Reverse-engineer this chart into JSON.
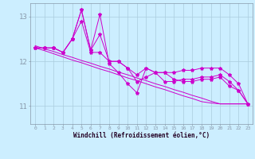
{
  "xlabel": "Windchill (Refroidissement éolien,°C)",
  "background_color": "#cceeff",
  "line_color": "#cc00cc",
  "grid_color": "#aaccdd",
  "xlim": [
    -0.5,
    23.5
  ],
  "ylim": [
    10.6,
    13.3
  ],
  "yticks": [
    11,
    12,
    13
  ],
  "xticks": [
    0,
    1,
    2,
    3,
    4,
    5,
    6,
    7,
    8,
    9,
    10,
    11,
    12,
    13,
    14,
    15,
    16,
    17,
    18,
    19,
    20,
    21,
    22,
    23
  ],
  "series": {
    "line1": [
      12.3,
      12.3,
      12.3,
      12.2,
      12.5,
      13.15,
      12.25,
      12.6,
      12.0,
      12.0,
      11.85,
      11.7,
      11.85,
      11.75,
      11.75,
      11.75,
      11.8,
      11.8,
      11.85,
      11.85,
      11.85,
      11.7,
      11.5,
      11.05
    ],
    "line2": [
      12.3,
      12.3,
      12.3,
      12.2,
      12.5,
      13.15,
      12.25,
      13.05,
      11.95,
      11.75,
      11.5,
      11.3,
      11.85,
      11.75,
      11.75,
      11.6,
      11.55,
      11.55,
      11.6,
      11.6,
      11.65,
      11.45,
      11.35,
      11.05
    ],
    "line3": [
      12.3,
      12.3,
      12.3,
      12.2,
      12.5,
      12.9,
      12.2,
      12.2,
      12.0,
      12.0,
      11.85,
      11.55,
      11.65,
      11.75,
      11.55,
      11.55,
      11.6,
      11.6,
      11.65,
      11.65,
      11.7,
      11.55,
      11.35,
      11.05
    ],
    "trend1": [
      12.35,
      12.28,
      12.22,
      12.15,
      12.09,
      12.02,
      11.96,
      11.89,
      11.83,
      11.76,
      11.7,
      11.63,
      11.57,
      11.5,
      11.44,
      11.37,
      11.31,
      11.24,
      11.18,
      11.11,
      11.05,
      11.05,
      11.05,
      11.05
    ],
    "trend2": [
      12.3,
      12.24,
      12.17,
      12.1,
      12.03,
      11.97,
      11.9,
      11.83,
      11.77,
      11.7,
      11.63,
      11.57,
      11.5,
      11.43,
      11.37,
      11.3,
      11.23,
      11.17,
      11.1,
      11.07,
      11.05,
      11.05,
      11.05,
      11.05
    ]
  }
}
